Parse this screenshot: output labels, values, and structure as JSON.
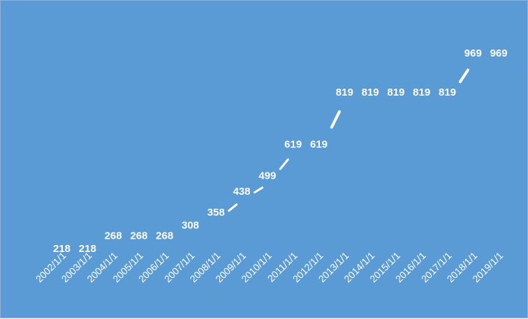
{
  "chart_data": {
    "type": "line",
    "categories": [
      "2002/1/1",
      "2003/1/1",
      "2004/1/1",
      "2005/1/1",
      "2006/1/1",
      "2007/1/1",
      "2008/1/1",
      "2009/1/1",
      "2010/1/1",
      "2011/1/1",
      "2012/1/1",
      "2013/1/1",
      "2014/1/1",
      "2015/1/1",
      "2016/1/1",
      "2017/1/1",
      "2018/1/1",
      "2019/1/1"
    ],
    "values": [
      218,
      218,
      268,
      268,
      268,
      308,
      358,
      438,
      499,
      619,
      619,
      819,
      819,
      819,
      819,
      819,
      969,
      969
    ],
    "title": "",
    "xlabel": "",
    "ylabel": "",
    "ylim": [
      0,
      1000
    ],
    "grid": false,
    "drop_lines": true,
    "data_labels": true,
    "colors": {
      "background": "#5b9bd5",
      "line": "#ffffff",
      "text": "#ffffff"
    }
  }
}
